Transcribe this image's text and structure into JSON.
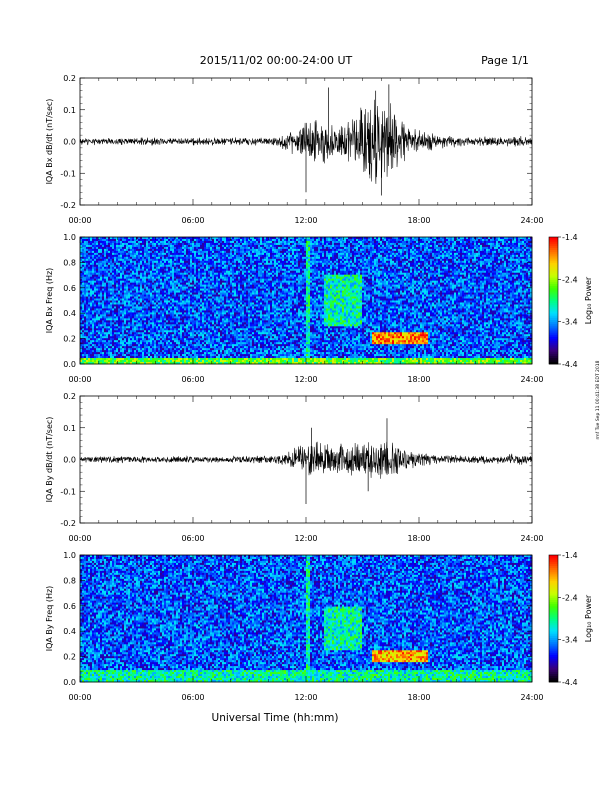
{
  "header": {
    "title": "2015/11/02  00:00-24:00 UT",
    "page": "Page 1/1"
  },
  "footer": {
    "xlabel": "Universal Time (hh:mm)",
    "stamp": "rmf Tue Sep 11 00:41:38 EDT 2018"
  },
  "colorbar": {
    "label": "Log₁₀ Power",
    "ticks": [
      "-1.4",
      "-2.4",
      "-3.4",
      "-4.4"
    ],
    "colors": [
      "#000000",
      "#3a007a",
      "#0000ff",
      "#0078ff",
      "#00e0ff",
      "#00ff80",
      "#40ff00",
      "#c8ff00",
      "#ffd000",
      "#ff6a00",
      "#ff0000"
    ]
  },
  "chart_data": [
    {
      "type": "line",
      "ylabel": "IQA Bx dB/dt (nT/sec)",
      "xticks": [
        "00:00",
        "06:00",
        "12:00",
        "18:00",
        "24:00"
      ],
      "xlim": [
        0,
        24
      ],
      "ylim": [
        -0.2,
        0.2
      ],
      "yticks": [
        "0.2",
        "0.1",
        "0.0",
        "-0.1",
        "-0.2"
      ],
      "envelope": {
        "hours": [
          0,
          2,
          4,
          6,
          8,
          10,
          10.5,
          11,
          11.5,
          12,
          12.5,
          13,
          13.5,
          14,
          14.5,
          15,
          15.5,
          16,
          16.5,
          17,
          17.5,
          18,
          19,
          20,
          22,
          23.5,
          24
        ],
        "amplitude": [
          0.012,
          0.013,
          0.014,
          0.013,
          0.013,
          0.014,
          0.02,
          0.03,
          0.05,
          0.07,
          0.08,
          0.09,
          0.07,
          0.06,
          0.08,
          0.12,
          0.14,
          0.15,
          0.13,
          0.09,
          0.06,
          0.04,
          0.025,
          0.018,
          0.016,
          0.02,
          0.012
        ]
      },
      "peaks": [
        {
          "hour": 12.0,
          "value": -0.16
        },
        {
          "hour": 13.2,
          "value": 0.17
        },
        {
          "hour": 15.7,
          "value": 0.16
        },
        {
          "hour": 16.4,
          "value": 0.18
        },
        {
          "hour": 16.0,
          "value": -0.17
        }
      ]
    },
    {
      "type": "heatmap",
      "ylabel": "IQA Bx Freq (Hz)",
      "xticks": [
        "00:00",
        "06:00",
        "12:00",
        "18:00",
        "24:00"
      ],
      "xlim": [
        0,
        24
      ],
      "ylim": [
        0.0,
        1.0
      ],
      "yticks": [
        "1.0",
        "0.8",
        "0.6",
        "0.4",
        "0.2",
        "0.0"
      ],
      "zlim": [
        -4.4,
        -1.4
      ],
      "features": [
        {
          "name": "background",
          "hours": [
            0,
            24
          ],
          "freq": [
            0.0,
            1.0
          ],
          "log_power": -3.6
        },
        {
          "name": "low-frequency band",
          "hours": [
            0,
            24
          ],
          "freq": [
            0.0,
            0.05
          ],
          "log_power": -2.6
        },
        {
          "name": "pulsation event",
          "hours": [
            15.5,
            18.5
          ],
          "freq": [
            0.15,
            0.25
          ],
          "log_power": -1.8
        },
        {
          "name": "weak emission",
          "hours": [
            13.0,
            15.0
          ],
          "freq": [
            0.3,
            0.7
          ],
          "log_power": -3.0
        },
        {
          "name": "broadband burst",
          "hours": [
            12.0,
            12.2
          ],
          "freq": [
            0.0,
            1.0
          ],
          "log_power": -3.0
        }
      ]
    },
    {
      "type": "line",
      "ylabel": "IQA By dB/dt (nT/sec)",
      "xticks": [
        "00:00",
        "06:00",
        "12:00",
        "18:00",
        "24:00"
      ],
      "xlim": [
        0,
        24
      ],
      "ylim": [
        -0.2,
        0.2
      ],
      "yticks": [
        "0.2",
        "0.1",
        "0.0",
        "-0.1",
        "-0.2"
      ],
      "envelope": {
        "hours": [
          0,
          2,
          4,
          6,
          8,
          10,
          10.5,
          11,
          11.5,
          12,
          12.5,
          13,
          13.5,
          14,
          14.5,
          15,
          15.5,
          16,
          16.5,
          17,
          17.5,
          18,
          19,
          20,
          22,
          23.5,
          24
        ],
        "amplitude": [
          0.011,
          0.012,
          0.012,
          0.012,
          0.012,
          0.014,
          0.02,
          0.03,
          0.045,
          0.06,
          0.065,
          0.06,
          0.055,
          0.05,
          0.06,
          0.07,
          0.075,
          0.08,
          0.07,
          0.05,
          0.035,
          0.025,
          0.018,
          0.015,
          0.014,
          0.02,
          0.011
        ]
      },
      "peaks": [
        {
          "hour": 12.0,
          "value": -0.14
        },
        {
          "hour": 12.3,
          "value": 0.1
        },
        {
          "hour": 16.3,
          "value": 0.13
        },
        {
          "hour": 15.3,
          "value": -0.1
        }
      ]
    },
    {
      "type": "heatmap",
      "ylabel": "IQA By Freq (Hz)",
      "xticks": [
        "00:00",
        "06:00",
        "12:00",
        "18:00",
        "24:00"
      ],
      "xlim": [
        0,
        24
      ],
      "ylim": [
        0.0,
        1.0
      ],
      "yticks": [
        "1.0",
        "0.8",
        "0.6",
        "0.4",
        "0.2",
        "0.0"
      ],
      "zlim": [
        -4.4,
        -1.4
      ],
      "features": [
        {
          "name": "background",
          "hours": [
            0,
            24
          ],
          "freq": [
            0.0,
            1.0
          ],
          "log_power": -3.6
        },
        {
          "name": "low-frequency band",
          "hours": [
            0,
            24
          ],
          "freq": [
            0.0,
            0.1
          ],
          "log_power": -3.0
        },
        {
          "name": "pulsation event",
          "hours": [
            15.5,
            18.5
          ],
          "freq": [
            0.15,
            0.25
          ],
          "log_power": -1.9
        },
        {
          "name": "weak emission",
          "hours": [
            13.0,
            15.0
          ],
          "freq": [
            0.25,
            0.6
          ],
          "log_power": -3.0
        },
        {
          "name": "broadband burst",
          "hours": [
            12.0,
            12.2
          ],
          "freq": [
            0.0,
            1.0
          ],
          "log_power": -3.0
        }
      ]
    }
  ]
}
